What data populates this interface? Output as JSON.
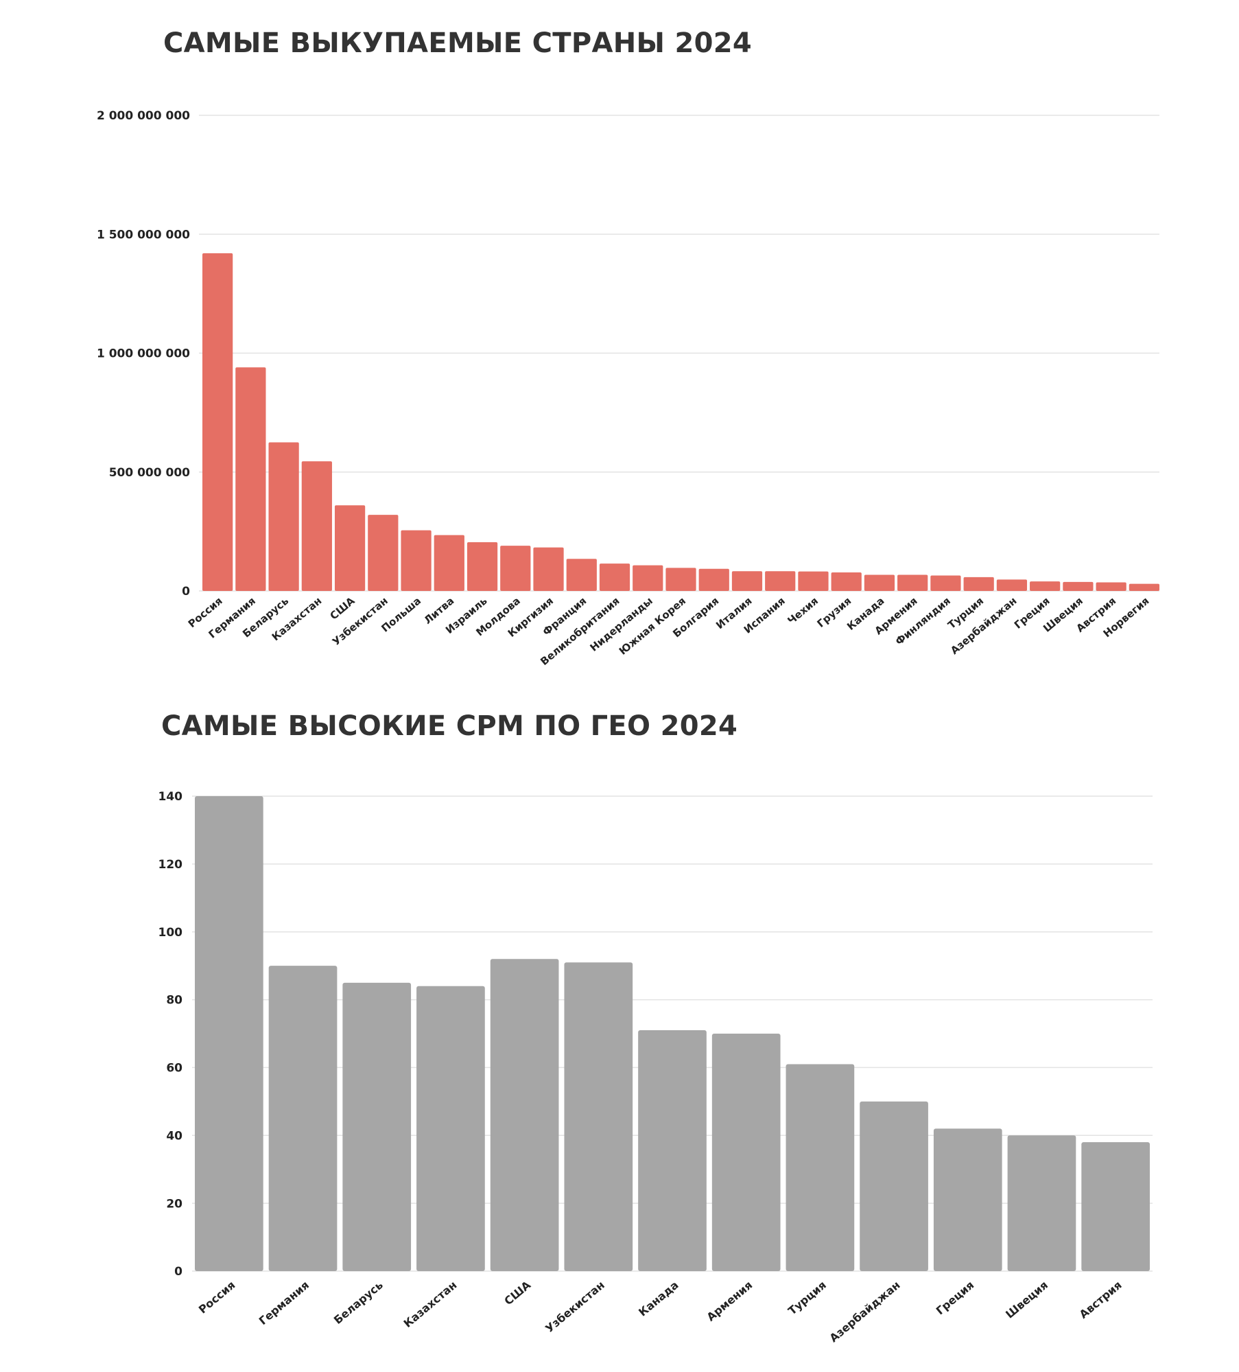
{
  "chart_data": [
    {
      "type": "bar",
      "title": "САМЫЕ ВЫКУПАЕМЫЕ СТРАНЫ 2024",
      "xlabel": "",
      "ylabel": "",
      "ylim": [
        0,
        2000000000
      ],
      "yticks": [
        0,
        500000000,
        1000000000,
        1500000000,
        2000000000
      ],
      "ytick_labels": [
        "0",
        "500 000 000",
        "1 000 000 000",
        "1 500 000 000",
        "2 000 000 000"
      ],
      "grid": true,
      "legend": "none",
      "bar_color": "#e56f64",
      "categories": [
        "Россия",
        "Германия",
        "Беларусь",
        "Казахстан",
        "США",
        "Узбекистан",
        "Польша",
        "Литва",
        "Израиль",
        "Молдова",
        "Киргизия",
        "Франция",
        "Великобритания",
        "Нидерланды",
        "Южная Корея",
        "Болгария",
        "Италия",
        "Испания",
        "Чехия",
        "Грузия",
        "Канада",
        "Армения",
        "Финляндия",
        "Турция",
        "Азербайджан",
        "Греция",
        "Швеция",
        "Австрия",
        "Норвегия"
      ],
      "values": [
        1420000000,
        940000000,
        625000000,
        545000000,
        360000000,
        320000000,
        255000000,
        235000000,
        205000000,
        190000000,
        183000000,
        135000000,
        115000000,
        108000000,
        97000000,
        93000000,
        83000000,
        83000000,
        82000000,
        78000000,
        68000000,
        68000000,
        65000000,
        58000000,
        48000000,
        40000000,
        38000000,
        36000000,
        30000000
      ]
    },
    {
      "type": "bar",
      "title": "САМЫЕ ВЫСОКИЕ CPM ПО ГЕО 2024",
      "xlabel": "",
      "ylabel": "",
      "ylim": [
        0,
        140
      ],
      "yticks": [
        0,
        20,
        40,
        60,
        80,
        100,
        120,
        140
      ],
      "ytick_labels": [
        "0",
        "20",
        "40",
        "60",
        "80",
        "100",
        "120",
        "140"
      ],
      "grid": true,
      "legend": "none",
      "bar_color": "#a6a6a6",
      "categories": [
        "Россия",
        "Германия",
        "Беларусь",
        "Казахстан",
        "США",
        "Узбекистан",
        "Канада",
        "Армения",
        "Турция",
        "Азербайджан",
        "Греция",
        "Швеция",
        "Австрия"
      ],
      "values": [
        140,
        90,
        85,
        84,
        92,
        91,
        71,
        70,
        61,
        50,
        42,
        40,
        38
      ]
    }
  ]
}
